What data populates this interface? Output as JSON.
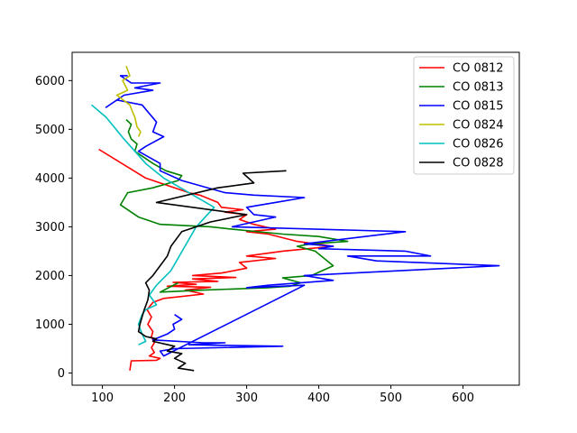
{
  "chart_data": {
    "type": "line",
    "title": "",
    "xlabel": "",
    "ylabel": "",
    "xlim": [
      58,
      678
    ],
    "ylim": [
      -250,
      6580
    ],
    "xticks": [
      100,
      200,
      300,
      400,
      500,
      600
    ],
    "yticks": [
      0,
      1000,
      2000,
      3000,
      4000,
      5000,
      6000
    ],
    "grid": false,
    "legend": "top-right",
    "series": [
      {
        "name": "CO 0812",
        "color": "#ff0000",
        "points": [
          [
            138,
            50
          ],
          [
            140,
            250
          ],
          [
            175,
            260
          ],
          [
            180,
            300
          ],
          [
            165,
            350
          ],
          [
            172,
            420
          ],
          [
            168,
            520
          ],
          [
            172,
            620
          ],
          [
            168,
            750
          ],
          [
            170,
            850
          ],
          [
            163,
            1000
          ],
          [
            168,
            1150
          ],
          [
            162,
            1300
          ],
          [
            170,
            1450
          ],
          [
            185,
            1530
          ],
          [
            240,
            1620
          ],
          [
            215,
            1700
          ],
          [
            250,
            1760
          ],
          [
            190,
            1780
          ],
          [
            230,
            1820
          ],
          [
            198,
            1860
          ],
          [
            260,
            1880
          ],
          [
            225,
            1930
          ],
          [
            285,
            1960
          ],
          [
            225,
            2000
          ],
          [
            265,
            2050
          ],
          [
            300,
            2150
          ],
          [
            290,
            2270
          ],
          [
            340,
            2350
          ],
          [
            300,
            2400
          ],
          [
            350,
            2500
          ],
          [
            420,
            2600
          ],
          [
            370,
            2700
          ],
          [
            330,
            2850
          ],
          [
            300,
            2900
          ],
          [
            340,
            2950
          ],
          [
            310,
            3050
          ],
          [
            290,
            3150
          ],
          [
            300,
            3250
          ],
          [
            270,
            3300
          ],
          [
            295,
            3350
          ],
          [
            265,
            3400
          ],
          [
            260,
            3500
          ],
          [
            235,
            3650
          ],
          [
            220,
            3700
          ],
          [
            160,
            4000
          ],
          [
            95,
            4590
          ]
        ]
      },
      {
        "name": "CO 0813",
        "color": "#008000",
        "points": [
          [
            205,
            1850
          ],
          [
            180,
            1660
          ],
          [
            240,
            1700
          ],
          [
            330,
            1750
          ],
          [
            360,
            1780
          ],
          [
            375,
            1850
          ],
          [
            350,
            1950
          ],
          [
            390,
            2000
          ],
          [
            420,
            2200
          ],
          [
            395,
            2500
          ],
          [
            370,
            2600
          ],
          [
            390,
            2650
          ],
          [
            440,
            2700
          ],
          [
            400,
            2800
          ],
          [
            350,
            2850
          ],
          [
            280,
            2950
          ],
          [
            250,
            3000
          ],
          [
            180,
            3050
          ],
          [
            150,
            3200
          ],
          [
            140,
            3300
          ],
          [
            125,
            3450
          ],
          [
            135,
            3700
          ],
          [
            170,
            3800
          ],
          [
            205,
            3950
          ],
          [
            210,
            4050
          ],
          [
            188,
            4150
          ],
          [
            170,
            4300
          ],
          [
            155,
            4450
          ],
          [
            145,
            4550
          ],
          [
            148,
            4700
          ],
          [
            140,
            4800
          ],
          [
            136,
            4950
          ],
          [
            140,
            5100
          ],
          [
            133,
            5200
          ]
        ]
      },
      {
        "name": "CO 0815",
        "color": "#0000ff",
        "points": [
          [
            200,
            1200
          ],
          [
            210,
            1100
          ],
          [
            198,
            1000
          ],
          [
            200,
            900
          ],
          [
            190,
            800
          ],
          [
            170,
            680
          ],
          [
            240,
            620
          ],
          [
            270,
            620
          ],
          [
            220,
            580
          ],
          [
            255,
            570
          ],
          [
            350,
            550
          ],
          [
            200,
            500
          ],
          [
            180,
            450
          ],
          [
            185,
            350
          ],
          [
            380,
            1800
          ],
          [
            300,
            1750
          ],
          [
            330,
            1800
          ],
          [
            420,
            1900
          ],
          [
            380,
            2000
          ],
          [
            650,
            2200
          ],
          [
            480,
            2300
          ],
          [
            440,
            2400
          ],
          [
            555,
            2400
          ],
          [
            520,
            2500
          ],
          [
            400,
            2550
          ],
          [
            420,
            2600
          ],
          [
            380,
            2650
          ],
          [
            520,
            2900
          ],
          [
            280,
            3000
          ],
          [
            340,
            3200
          ],
          [
            310,
            3250
          ],
          [
            300,
            3400
          ],
          [
            340,
            3500
          ],
          [
            380,
            3600
          ],
          [
            310,
            3650
          ],
          [
            270,
            3700
          ],
          [
            210,
            3950
          ],
          [
            180,
            4150
          ],
          [
            180,
            4300
          ],
          [
            150,
            4550
          ],
          [
            160,
            4650
          ],
          [
            185,
            4850
          ],
          [
            170,
            4950
          ],
          [
            175,
            5150
          ],
          [
            155,
            5500
          ],
          [
            120,
            5600
          ],
          [
            105,
            5450
          ],
          [
            130,
            5700
          ],
          [
            170,
            5800
          ],
          [
            145,
            5850
          ],
          [
            180,
            5950
          ],
          [
            140,
            5950
          ],
          [
            125,
            6100
          ],
          [
            135,
            6100
          ]
        ]
      },
      {
        "name": "CO 0824",
        "color": "#bfbf00",
        "points": [
          [
            150,
            4850
          ],
          [
            153,
            4950
          ],
          [
            148,
            5050
          ],
          [
            145,
            5250
          ],
          [
            142,
            5350
          ],
          [
            138,
            5500
          ],
          [
            120,
            5700
          ],
          [
            135,
            5800
          ],
          [
            128,
            6000
          ],
          [
            138,
            6100
          ],
          [
            133,
            6300
          ]
        ]
      },
      {
        "name": "CO 0826",
        "color": "#00bfbf",
        "points": [
          [
            150,
            580
          ],
          [
            160,
            650
          ],
          [
            155,
            800
          ],
          [
            150,
            1000
          ],
          [
            155,
            1200
          ],
          [
            160,
            1300
          ],
          [
            175,
            1400
          ],
          [
            165,
            1600
          ],
          [
            175,
            1800
          ],
          [
            195,
            2100
          ],
          [
            230,
            3000
          ],
          [
            255,
            3400
          ],
          [
            185,
            4000
          ],
          [
            160,
            4300
          ],
          [
            130,
            4800
          ],
          [
            105,
            5250
          ],
          [
            85,
            5500
          ]
        ]
      },
      {
        "name": "CO 0828",
        "color": "#000000",
        "points": [
          [
            227,
            50
          ],
          [
            205,
            100
          ],
          [
            215,
            200
          ],
          [
            200,
            300
          ],
          [
            210,
            400
          ],
          [
            190,
            450
          ],
          [
            200,
            550
          ],
          [
            170,
            650
          ],
          [
            175,
            700
          ],
          [
            160,
            750
          ],
          [
            150,
            850
          ],
          [
            152,
            1000
          ],
          [
            155,
            1150
          ],
          [
            158,
            1300
          ],
          [
            163,
            1500
          ],
          [
            165,
            1700
          ],
          [
            160,
            1850
          ],
          [
            170,
            2000
          ],
          [
            180,
            2200
          ],
          [
            190,
            2400
          ],
          [
            195,
            2600
          ],
          [
            210,
            2900
          ],
          [
            250,
            3100
          ],
          [
            300,
            3250
          ],
          [
            175,
            3500
          ],
          [
            260,
            3800
          ],
          [
            310,
            3900
          ],
          [
            295,
            4100
          ],
          [
            355,
            4150
          ]
        ]
      }
    ]
  }
}
